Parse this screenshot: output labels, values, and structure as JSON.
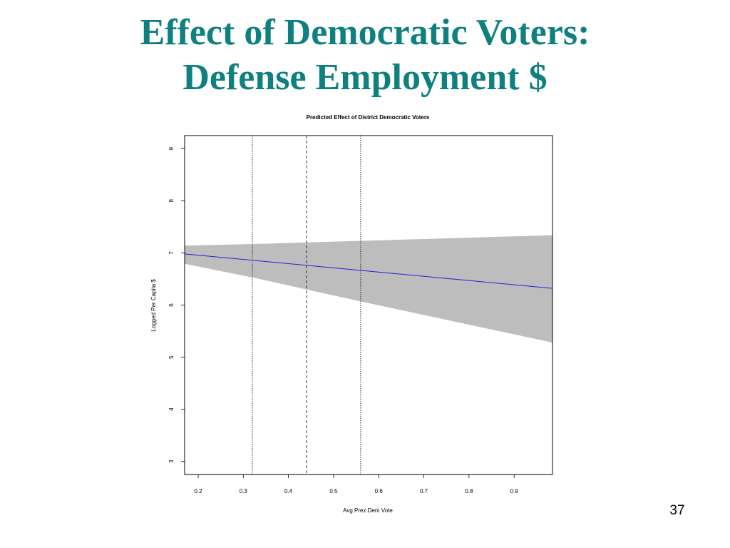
{
  "slide": {
    "title_line1": "Effect of Democratic Voters:",
    "title_line2": "Defense Employment $",
    "page_number": "37"
  },
  "colors": {
    "title": "#0f8080",
    "fit_line": "#2020e0",
    "confidence_band": "#bdbdbd"
  },
  "chart_data": {
    "type": "line",
    "title": "Predicted Effect of District Democratic Voters",
    "xlabel": "Avg Prez Dem Vote",
    "ylabel": "Logged Per Capita $",
    "xlim": [
      0.17,
      0.985
    ],
    "ylim": [
      2.75,
      9.25
    ],
    "x_ticks": [
      "0.2",
      "0.3",
      "0.4",
      "0.5",
      "0.6",
      "0.7",
      "0.8",
      "0.9"
    ],
    "y_ticks": [
      "3",
      "4",
      "5",
      "6",
      "7",
      "8",
      "9"
    ],
    "grid": false,
    "series": [
      {
        "type": "line",
        "x": [
          0.17,
          0.985
        ],
        "y": [
          6.98,
          6.32
        ]
      }
    ],
    "band": {
      "x": [
        0.17,
        0.32,
        0.44,
        0.56,
        0.985
      ],
      "upper": [
        7.14,
        7.17,
        7.2,
        7.23,
        7.34
      ],
      "lower": [
        6.79,
        6.53,
        6.3,
        6.07,
        5.28
      ]
    },
    "vlines": [
      {
        "x": 0.32,
        "style": "dotted"
      },
      {
        "x": 0.44,
        "style": "dashed"
      },
      {
        "x": 0.56,
        "style": "dotted"
      }
    ]
  }
}
